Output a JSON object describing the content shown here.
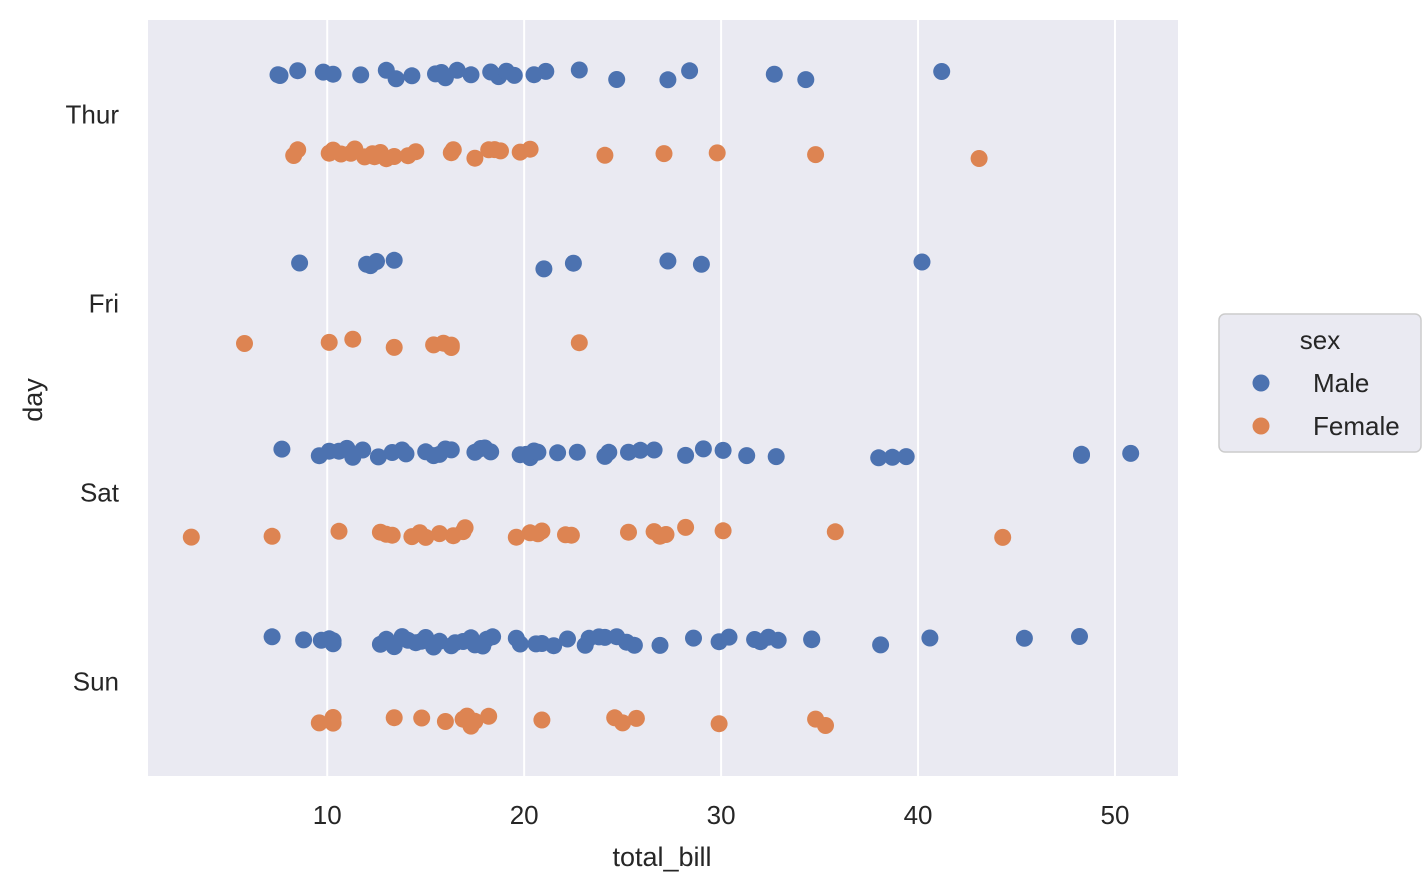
{
  "chart_data": {
    "type": "scatter",
    "subtype": "strip",
    "title": "",
    "xlabel": "total_bill",
    "ylabel": "day",
    "xlim": [
      0.9,
      53.2
    ],
    "xticks": [
      10,
      20,
      30,
      40,
      50
    ],
    "categories": [
      "Thur",
      "Fri",
      "Sat",
      "Sun"
    ],
    "grid": true,
    "legend": {
      "title": "sex",
      "position": "right",
      "entries": [
        "Male",
        "Female"
      ]
    },
    "colors": {
      "Male": "#4c72b0",
      "Female": "#dd8452",
      "background": "#eaeaf2",
      "grid": "#ffffff"
    },
    "series": [
      {
        "name": "Male",
        "points": [
          {
            "day": "Thur",
            "x": 7.5
          },
          {
            "day": "Thur",
            "x": 7.6
          },
          {
            "day": "Thur",
            "x": 8.5
          },
          {
            "day": "Thur",
            "x": 9.8
          },
          {
            "day": "Thur",
            "x": 10.3
          },
          {
            "day": "Thur",
            "x": 11.7
          },
          {
            "day": "Thur",
            "x": 13.0
          },
          {
            "day": "Thur",
            "x": 13.5
          },
          {
            "day": "Thur",
            "x": 14.3
          },
          {
            "day": "Thur",
            "x": 15.5
          },
          {
            "day": "Thur",
            "x": 15.8
          },
          {
            "day": "Thur",
            "x": 16.0
          },
          {
            "day": "Thur",
            "x": 16.0
          },
          {
            "day": "Thur",
            "x": 16.6
          },
          {
            "day": "Thur",
            "x": 17.3
          },
          {
            "day": "Thur",
            "x": 18.3
          },
          {
            "day": "Thur",
            "x": 18.7
          },
          {
            "day": "Thur",
            "x": 19.1
          },
          {
            "day": "Thur",
            "x": 19.5
          },
          {
            "day": "Thur",
            "x": 20.5
          },
          {
            "day": "Thur",
            "x": 21.1
          },
          {
            "day": "Thur",
            "x": 22.8
          },
          {
            "day": "Thur",
            "x": 24.7
          },
          {
            "day": "Thur",
            "x": 27.3
          },
          {
            "day": "Thur",
            "x": 28.4
          },
          {
            "day": "Thur",
            "x": 32.7
          },
          {
            "day": "Thur",
            "x": 34.3
          },
          {
            "day": "Thur",
            "x": 41.2
          },
          {
            "day": "Fri",
            "x": 8.6
          },
          {
            "day": "Fri",
            "x": 12.0
          },
          {
            "day": "Fri",
            "x": 12.2
          },
          {
            "day": "Fri",
            "x": 12.5
          },
          {
            "day": "Fri",
            "x": 13.4
          },
          {
            "day": "Fri",
            "x": 21.0
          },
          {
            "day": "Fri",
            "x": 22.5
          },
          {
            "day": "Fri",
            "x": 27.3
          },
          {
            "day": "Fri",
            "x": 29.0
          },
          {
            "day": "Fri",
            "x": 40.2
          },
          {
            "day": "Sat",
            "x": 7.7
          },
          {
            "day": "Sat",
            "x": 9.6
          },
          {
            "day": "Sat",
            "x": 10.1
          },
          {
            "day": "Sat",
            "x": 10.6
          },
          {
            "day": "Sat",
            "x": 11.0
          },
          {
            "day": "Sat",
            "x": 11.3
          },
          {
            "day": "Sat",
            "x": 11.8
          },
          {
            "day": "Sat",
            "x": 12.6
          },
          {
            "day": "Sat",
            "x": 13.3
          },
          {
            "day": "Sat",
            "x": 13.8
          },
          {
            "day": "Sat",
            "x": 14.0
          },
          {
            "day": "Sat",
            "x": 15.0
          },
          {
            "day": "Sat",
            "x": 15.4
          },
          {
            "day": "Sat",
            "x": 15.7
          },
          {
            "day": "Sat",
            "x": 16.0
          },
          {
            "day": "Sat",
            "x": 16.3
          },
          {
            "day": "Sat",
            "x": 17.5
          },
          {
            "day": "Sat",
            "x": 17.8
          },
          {
            "day": "Sat",
            "x": 18.0
          },
          {
            "day": "Sat",
            "x": 18.3
          },
          {
            "day": "Sat",
            "x": 19.8
          },
          {
            "day": "Sat",
            "x": 20.1
          },
          {
            "day": "Sat",
            "x": 20.3
          },
          {
            "day": "Sat",
            "x": 20.5
          },
          {
            "day": "Sat",
            "x": 20.7
          },
          {
            "day": "Sat",
            "x": 21.7
          },
          {
            "day": "Sat",
            "x": 22.7
          },
          {
            "day": "Sat",
            "x": 24.1
          },
          {
            "day": "Sat",
            "x": 24.3
          },
          {
            "day": "Sat",
            "x": 25.3
          },
          {
            "day": "Sat",
            "x": 25.9
          },
          {
            "day": "Sat",
            "x": 26.6
          },
          {
            "day": "Sat",
            "x": 28.2
          },
          {
            "day": "Sat",
            "x": 29.1
          },
          {
            "day": "Sat",
            "x": 30.1
          },
          {
            "day": "Sat",
            "x": 31.3
          },
          {
            "day": "Sat",
            "x": 32.8
          },
          {
            "day": "Sat",
            "x": 38.0
          },
          {
            "day": "Sat",
            "x": 38.7
          },
          {
            "day": "Sat",
            "x": 39.4
          },
          {
            "day": "Sat",
            "x": 48.3
          },
          {
            "day": "Sat",
            "x": 48.3
          },
          {
            "day": "Sat",
            "x": 50.8
          },
          {
            "day": "Sun",
            "x": 7.2
          },
          {
            "day": "Sun",
            "x": 8.8
          },
          {
            "day": "Sun",
            "x": 9.7
          },
          {
            "day": "Sun",
            "x": 10.1
          },
          {
            "day": "Sun",
            "x": 10.3
          },
          {
            "day": "Sun",
            "x": 10.3
          },
          {
            "day": "Sun",
            "x": 12.7
          },
          {
            "day": "Sun",
            "x": 13.0
          },
          {
            "day": "Sun",
            "x": 13.4
          },
          {
            "day": "Sun",
            "x": 13.8
          },
          {
            "day": "Sun",
            "x": 14.1
          },
          {
            "day": "Sun",
            "x": 14.5
          },
          {
            "day": "Sun",
            "x": 14.8
          },
          {
            "day": "Sun",
            "x": 15.0
          },
          {
            "day": "Sun",
            "x": 15.4
          },
          {
            "day": "Sun",
            "x": 15.7
          },
          {
            "day": "Sun",
            "x": 16.3
          },
          {
            "day": "Sun",
            "x": 16.5
          },
          {
            "day": "Sun",
            "x": 16.9
          },
          {
            "day": "Sun",
            "x": 17.3
          },
          {
            "day": "Sun",
            "x": 17.5
          },
          {
            "day": "Sun",
            "x": 17.9
          },
          {
            "day": "Sun",
            "x": 18.1
          },
          {
            "day": "Sun",
            "x": 18.4
          },
          {
            "day": "Sun",
            "x": 19.6
          },
          {
            "day": "Sun",
            "x": 19.8
          },
          {
            "day": "Sun",
            "x": 20.6
          },
          {
            "day": "Sun",
            "x": 20.9
          },
          {
            "day": "Sun",
            "x": 21.5
          },
          {
            "day": "Sun",
            "x": 22.2
          },
          {
            "day": "Sun",
            "x": 23.1
          },
          {
            "day": "Sun",
            "x": 23.3
          },
          {
            "day": "Sun",
            "x": 23.8
          },
          {
            "day": "Sun",
            "x": 24.1
          },
          {
            "day": "Sun",
            "x": 24.7
          },
          {
            "day": "Sun",
            "x": 25.2
          },
          {
            "day": "Sun",
            "x": 25.6
          },
          {
            "day": "Sun",
            "x": 26.9
          },
          {
            "day": "Sun",
            "x": 28.6
          },
          {
            "day": "Sun",
            "x": 29.9
          },
          {
            "day": "Sun",
            "x": 30.4
          },
          {
            "day": "Sun",
            "x": 31.7
          },
          {
            "day": "Sun",
            "x": 32.0
          },
          {
            "day": "Sun",
            "x": 32.4
          },
          {
            "day": "Sun",
            "x": 32.9
          },
          {
            "day": "Sun",
            "x": 34.6
          },
          {
            "day": "Sun",
            "x": 34.6
          },
          {
            "day": "Sun",
            "x": 38.1
          },
          {
            "day": "Sun",
            "x": 40.6
          },
          {
            "day": "Sun",
            "x": 45.4
          },
          {
            "day": "Sun",
            "x": 48.2
          }
        ]
      },
      {
        "name": "Female",
        "points": [
          {
            "day": "Thur",
            "x": 8.3
          },
          {
            "day": "Thur",
            "x": 8.5
          },
          {
            "day": "Thur",
            "x": 10.1
          },
          {
            "day": "Thur",
            "x": 10.3
          },
          {
            "day": "Thur",
            "x": 10.7
          },
          {
            "day": "Thur",
            "x": 11.2
          },
          {
            "day": "Thur",
            "x": 11.4
          },
          {
            "day": "Thur",
            "x": 11.9
          },
          {
            "day": "Thur",
            "x": 12.3
          },
          {
            "day": "Thur",
            "x": 12.4
          },
          {
            "day": "Thur",
            "x": 12.7
          },
          {
            "day": "Thur",
            "x": 13.0
          },
          {
            "day": "Thur",
            "x": 13.4
          },
          {
            "day": "Thur",
            "x": 14.1
          },
          {
            "day": "Thur",
            "x": 14.5
          },
          {
            "day": "Thur",
            "x": 16.3
          },
          {
            "day": "Thur",
            "x": 16.4
          },
          {
            "day": "Thur",
            "x": 17.5
          },
          {
            "day": "Thur",
            "x": 18.2
          },
          {
            "day": "Thur",
            "x": 18.5
          },
          {
            "day": "Thur",
            "x": 18.8
          },
          {
            "day": "Thur",
            "x": 19.8
          },
          {
            "day": "Thur",
            "x": 20.3
          },
          {
            "day": "Thur",
            "x": 24.1
          },
          {
            "day": "Thur",
            "x": 27.1
          },
          {
            "day": "Thur",
            "x": 29.8
          },
          {
            "day": "Thur",
            "x": 34.8
          },
          {
            "day": "Thur",
            "x": 43.1
          },
          {
            "day": "Fri",
            "x": 5.8
          },
          {
            "day": "Fri",
            "x": 10.1
          },
          {
            "day": "Fri",
            "x": 11.3
          },
          {
            "day": "Fri",
            "x": 13.4
          },
          {
            "day": "Fri",
            "x": 15.4
          },
          {
            "day": "Fri",
            "x": 15.9
          },
          {
            "day": "Fri",
            "x": 16.3
          },
          {
            "day": "Fri",
            "x": 16.3
          },
          {
            "day": "Fri",
            "x": 22.8
          },
          {
            "day": "Sat",
            "x": 3.1
          },
          {
            "day": "Sat",
            "x": 7.2
          },
          {
            "day": "Sat",
            "x": 10.6
          },
          {
            "day": "Sat",
            "x": 12.7
          },
          {
            "day": "Sat",
            "x": 13.0
          },
          {
            "day": "Sat",
            "x": 13.3
          },
          {
            "day": "Sat",
            "x": 14.3
          },
          {
            "day": "Sat",
            "x": 14.7
          },
          {
            "day": "Sat",
            "x": 15.0
          },
          {
            "day": "Sat",
            "x": 15.7
          },
          {
            "day": "Sat",
            "x": 16.4
          },
          {
            "day": "Sat",
            "x": 16.9
          },
          {
            "day": "Sat",
            "x": 17.0
          },
          {
            "day": "Sat",
            "x": 19.6
          },
          {
            "day": "Sat",
            "x": 20.3
          },
          {
            "day": "Sat",
            "x": 20.7
          },
          {
            "day": "Sat",
            "x": 20.9
          },
          {
            "day": "Sat",
            "x": 22.1
          },
          {
            "day": "Sat",
            "x": 22.4
          },
          {
            "day": "Sat",
            "x": 25.3
          },
          {
            "day": "Sat",
            "x": 26.6
          },
          {
            "day": "Sat",
            "x": 26.9
          },
          {
            "day": "Sat",
            "x": 27.2
          },
          {
            "day": "Sat",
            "x": 28.2
          },
          {
            "day": "Sat",
            "x": 30.1
          },
          {
            "day": "Sat",
            "x": 35.8
          },
          {
            "day": "Sat",
            "x": 44.3
          },
          {
            "day": "Sun",
            "x": 9.6
          },
          {
            "day": "Sun",
            "x": 10.3
          },
          {
            "day": "Sun",
            "x": 10.3
          },
          {
            "day": "Sun",
            "x": 13.4
          },
          {
            "day": "Sun",
            "x": 14.8
          },
          {
            "day": "Sun",
            "x": 16.0
          },
          {
            "day": "Sun",
            "x": 16.9
          },
          {
            "day": "Sun",
            "x": 17.1
          },
          {
            "day": "Sun",
            "x": 17.3
          },
          {
            "day": "Sun",
            "x": 17.5
          },
          {
            "day": "Sun",
            "x": 18.2
          },
          {
            "day": "Sun",
            "x": 20.9
          },
          {
            "day": "Sun",
            "x": 24.6
          },
          {
            "day": "Sun",
            "x": 25.0
          },
          {
            "day": "Sun",
            "x": 25.7
          },
          {
            "day": "Sun",
            "x": 29.9
          },
          {
            "day": "Sun",
            "x": 34.8
          },
          {
            "day": "Sun",
            "x": 35.3
          }
        ]
      }
    ]
  }
}
